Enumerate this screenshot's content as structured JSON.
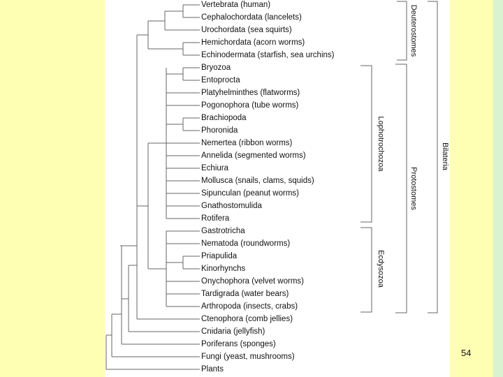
{
  "taxa": [
    "Vertebrata (human)",
    "Cephalochordata (lancelets)",
    "Urochordata (sea squirts)",
    "Hemichordata (acorn worms)",
    "Echinodermata (starfish, sea urchins)",
    "Bryozoa",
    "Entoprocta",
    "Platyhelminthes (flatworms)",
    "Pogonophora (tube worms)",
    "Brachiopoda",
    "Phoronida",
    "Nemertea (ribbon worms)",
    "Annelida (segmented worms)",
    "Echiura",
    "Mollusca (snails, clams, squids)",
    "Sipunculan (peanut worms)",
    "Gnathostomulida",
    "Rotifera",
    "Gastrotricha",
    "Nematoda (roundworms)",
    "Priapulida",
    "Kinorhynchs",
    "Onychophora (velvet worms)",
    "Tardigrada (water bears)",
    "Arthropoda (insects, crabs)",
    "Ctenophora (comb jellies)",
    "Cnidaria (jellyfish)",
    "Poriferans (sponges)",
    "Fungi (yeast, mushrooms)",
    "Plants"
  ],
  "groups": {
    "deuterostomes": "Deuterostomes",
    "protostomes": "Protostomes",
    "lophotrochozoa": "Lophotrochozoa",
    "ecdysozoa": "Ecdysozoa",
    "bilateria": "Bilateria"
  },
  "page_number": "54"
}
